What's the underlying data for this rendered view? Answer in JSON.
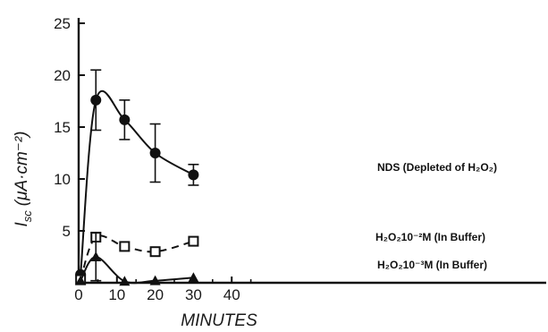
{
  "chart_data": {
    "type": "line",
    "xlabel": "MINUTES",
    "ylabel_main": "I",
    "ylabel_sub": "sc",
    "ylabel_rest": "(μA·cm⁻²)",
    "xlim": [
      0,
      50
    ],
    "ylim": [
      0,
      25
    ],
    "xticks": [
      "0",
      "10",
      "20",
      "30",
      "40"
    ],
    "yticks": [
      "5",
      "10",
      "15",
      "20",
      "25"
    ],
    "grid": false,
    "series": [
      {
        "name": "NDS (Depleted of H₂O₂)",
        "marker": "filled-circle",
        "line": "solid",
        "x": [
          0.5,
          4.5,
          12,
          20,
          30
        ],
        "y": [
          0.8,
          17.6,
          15.7,
          12.5,
          10.4
        ],
        "err": [
          0,
          2.9,
          1.9,
          2.8,
          1.0
        ]
      },
      {
        "name": "H₂O₂10⁻²M (In Buffer)",
        "marker": "open-square",
        "line": "dashed",
        "x": [
          0.5,
          4.5,
          12,
          20,
          30
        ],
        "y": [
          0.3,
          4.4,
          3.5,
          3.0,
          4.0
        ],
        "err": [
          0,
          0,
          0,
          0,
          0
        ]
      },
      {
        "name": "H₂O₂10⁻³M (In Buffer)",
        "marker": "filled-triangle",
        "line": "solid",
        "x": [
          0.5,
          4.5,
          12,
          20,
          30
        ],
        "y": [
          0.2,
          2.5,
          0.15,
          0.2,
          0.5
        ],
        "err": [
          0,
          2.3,
          0,
          0,
          0
        ]
      }
    ]
  }
}
